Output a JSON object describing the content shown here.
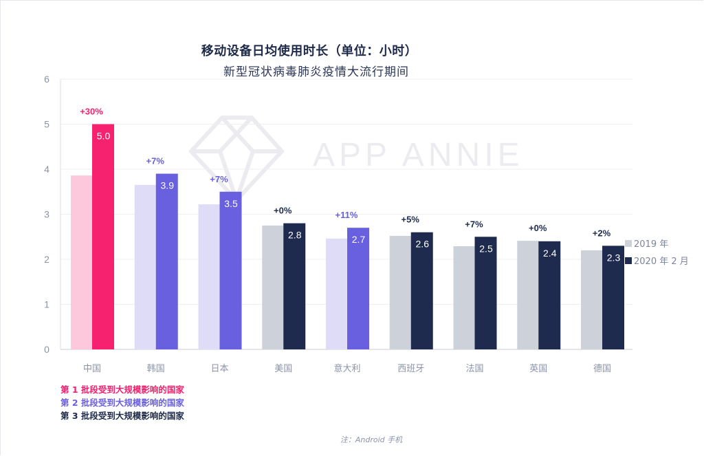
{
  "header": {
    "title": "移动设备日均使用时长（单位：小时）",
    "subtitle": "新型冠状病毒肺炎疫情大流行期间"
  },
  "watermark": {
    "text": "APP ANNIE",
    "icon": "diamond-icon"
  },
  "legend": {
    "items": [
      {
        "label": "2019 年",
        "color": "#cdd1da"
      },
      {
        "label": "2020 年 2 月",
        "color": "#1e2b4f"
      }
    ]
  },
  "batches": {
    "items": [
      {
        "label": "第 1 批段受到大规模影响的国家",
        "color": "#f41f6c"
      },
      {
        "label": "第 2 批段受到大规模影响的国家",
        "color": "#6a5fe0"
      },
      {
        "label": "第 3 批段受到大规模影响的国家",
        "color": "#1e2a4a"
      }
    ]
  },
  "note": "注：Android 手机",
  "colors": {
    "batch1_2019": "#fdc8dc",
    "batch1_2020": "#f7226f",
    "batch2_2019": "#dfdcf7",
    "batch2_2020": "#6860df",
    "batch3_2019": "#cdd1da",
    "batch3_2020": "#1e2b4f",
    "grid": "#efeff3",
    "axis": "#dcdde5",
    "tick_text": "#8a93a8",
    "watermark": "#ececf0"
  },
  "chart_data": {
    "type": "bar",
    "title": "移动设备日均使用时长（单位：小时）",
    "subtitle": "新型冠状病毒肺炎疫情大流行期间",
    "xlabel": "",
    "ylabel": "",
    "ylim": [
      0,
      6
    ],
    "yticks": [
      0,
      1,
      2,
      3,
      4,
      5,
      6
    ],
    "grid": true,
    "legend_position": "right",
    "categories": [
      "中国",
      "韩国",
      "日本",
      "美国",
      "意大利",
      "西班牙",
      "法国",
      "英国",
      "德国"
    ],
    "batch": [
      1,
      2,
      2,
      3,
      2,
      3,
      3,
      3,
      3
    ],
    "series": [
      {
        "name": "2019 年",
        "values": [
          3.86,
          3.65,
          3.22,
          2.75,
          2.46,
          2.52,
          2.29,
          2.41,
          2.2
        ]
      },
      {
        "name": "2020 年 2 月",
        "values": [
          5.0,
          3.9,
          3.5,
          2.8,
          2.7,
          2.6,
          2.5,
          2.4,
          2.3
        ]
      }
    ],
    "data_labels": [
      "5.0",
      "3.9",
      "3.5",
      "2.8",
      "2.7",
      "2.6",
      "2.5",
      "2.4",
      "2.3"
    ],
    "change_labels": [
      "+30%",
      "+7%",
      "+7%",
      "+0%",
      "+11%",
      "+5%",
      "+7%",
      "+0%",
      "+2%"
    ],
    "annotations": [
      "注：Android 手机"
    ]
  }
}
